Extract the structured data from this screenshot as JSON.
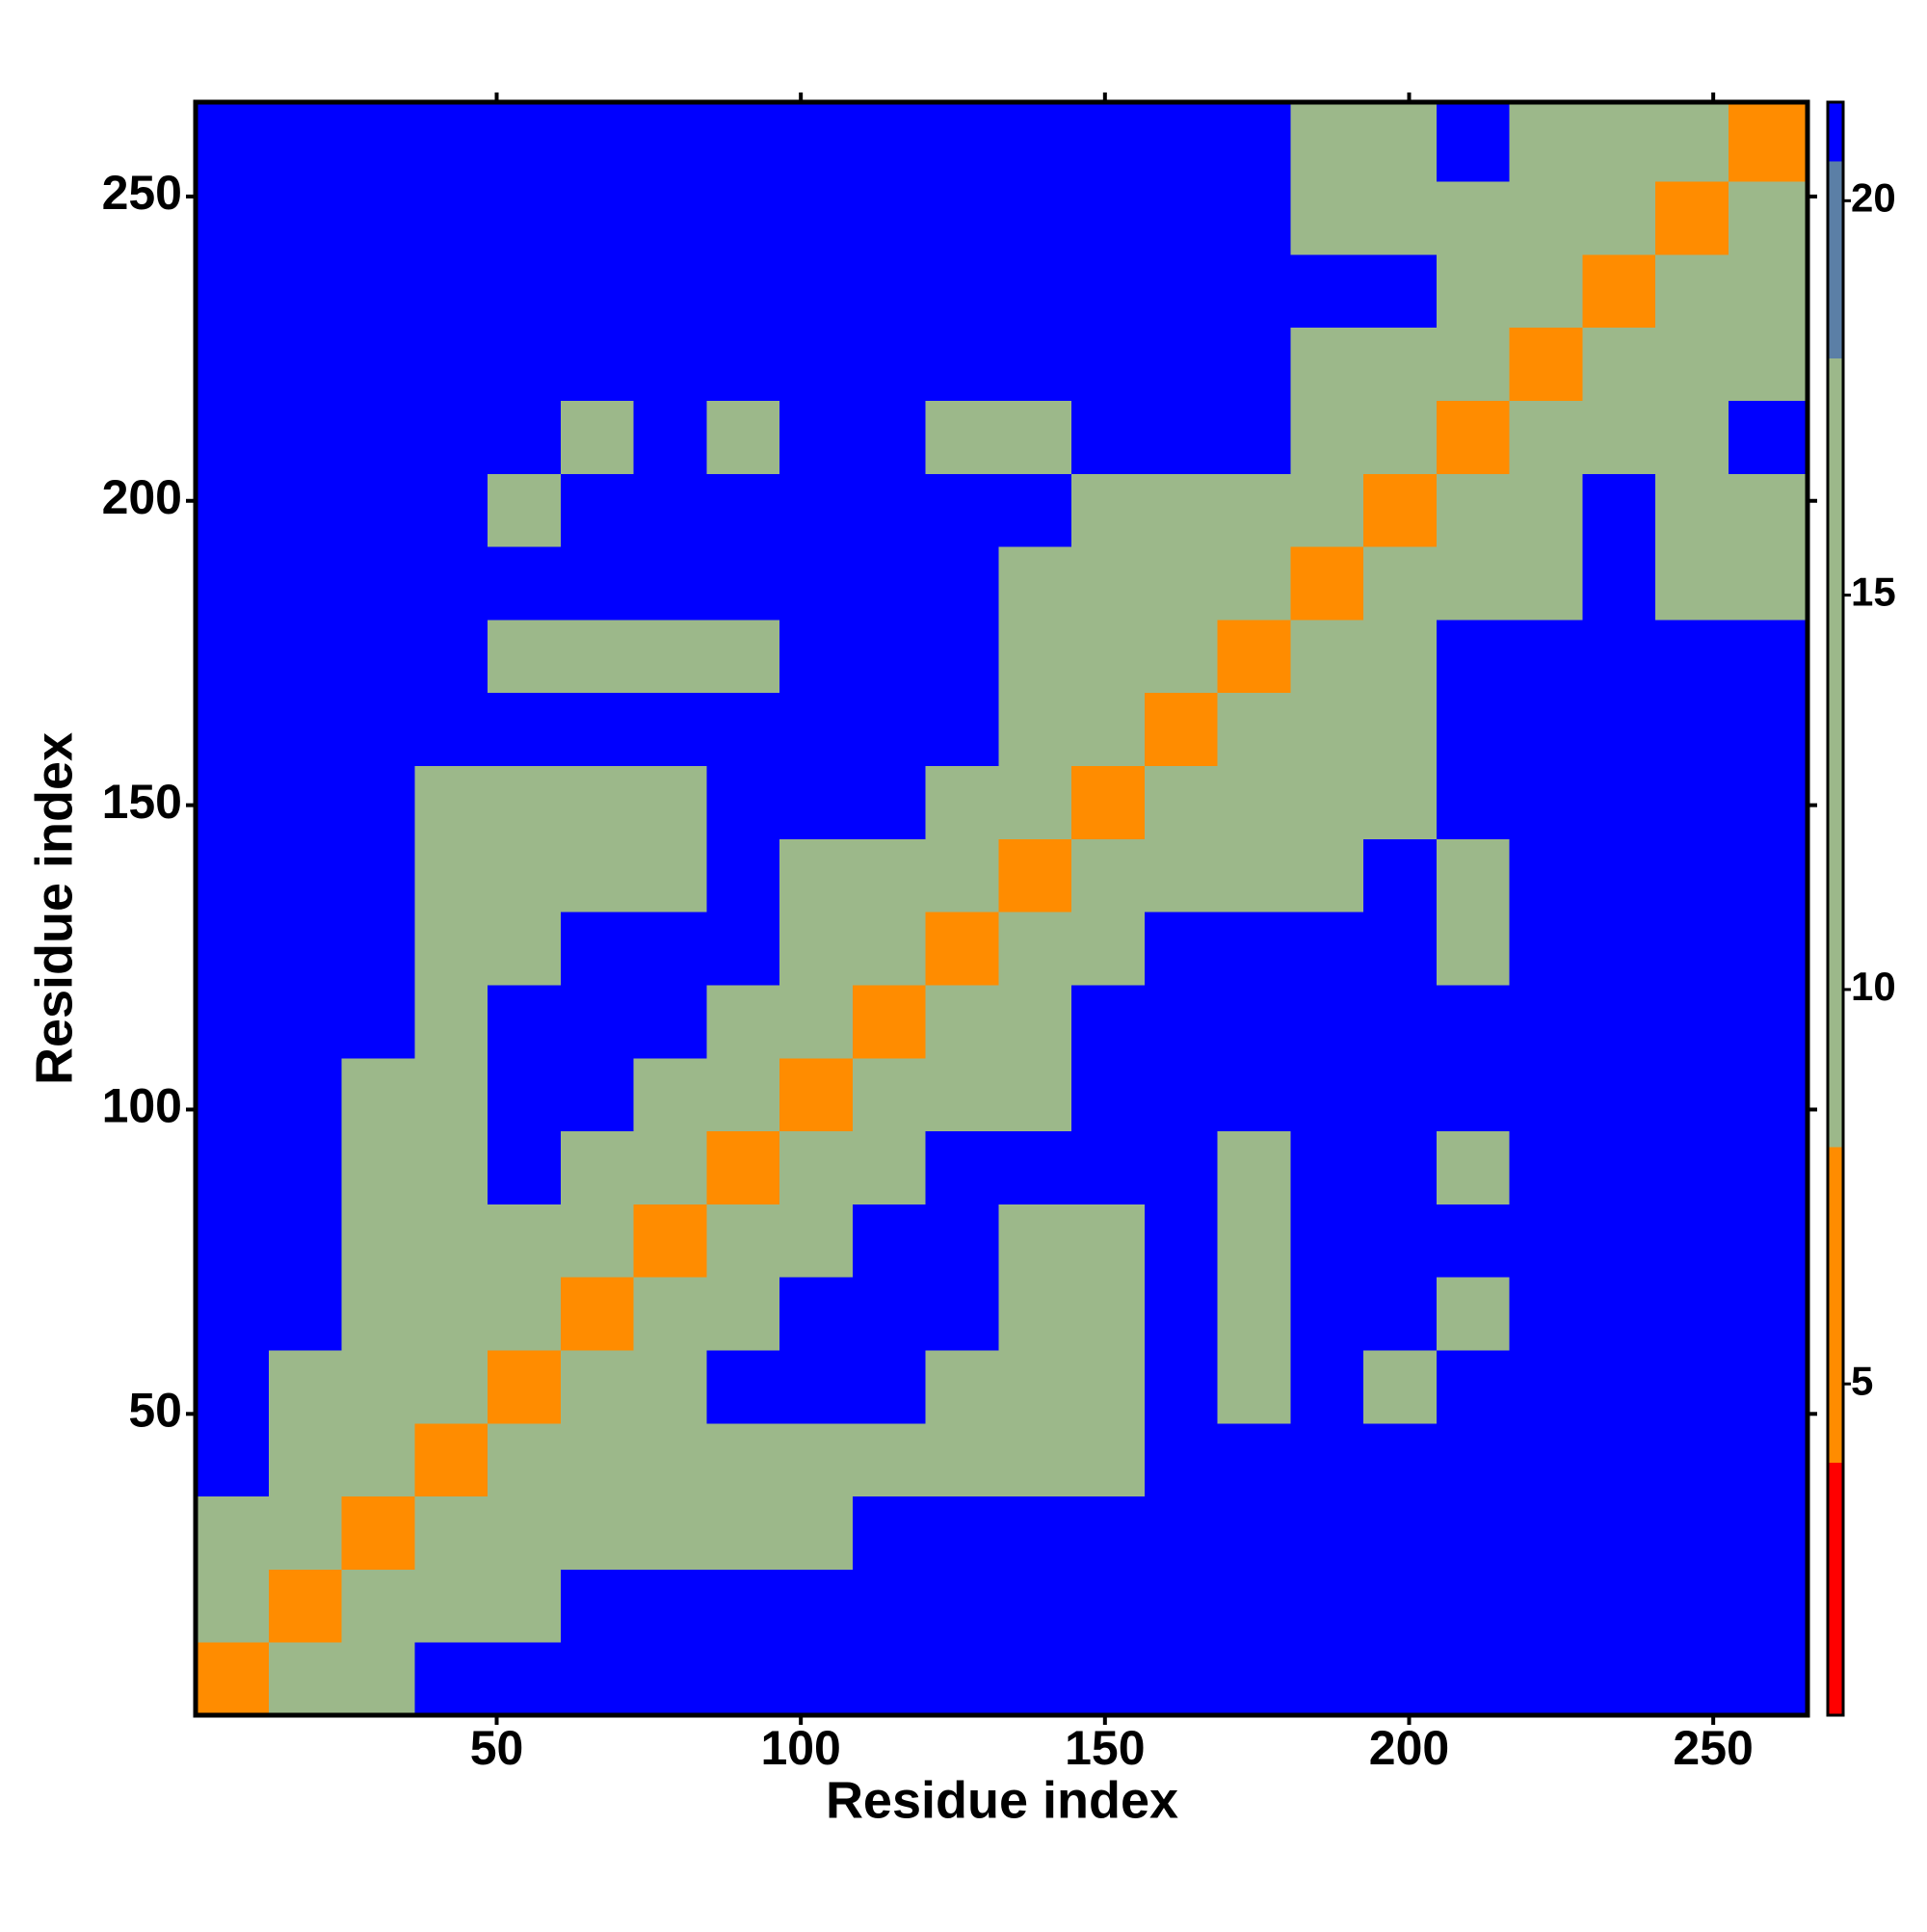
{
  "chart_data": {
    "type": "heatmap",
    "x_label": "Residue index",
    "y_label": "Residue index",
    "xbins": [
      0.5,
      12.5,
      24.5,
      36.5,
      48.5,
      60.5,
      72.5,
      84.5,
      96.5,
      108.5,
      120.5,
      132.5,
      144.5,
      156.5,
      168.5,
      180.5,
      192.5,
      204.5,
      216.5,
      228.5,
      240.5,
      252.5,
      265.5
    ],
    "ybins": [
      0.5,
      12.5,
      24.5,
      36.5,
      48.5,
      60.5,
      72.5,
      84.5,
      96.5,
      108.5,
      120.5,
      132.5,
      144.5,
      156.5,
      168.5,
      180.5,
      192.5,
      204.5,
      216.5,
      228.5,
      240.5,
      252.5,
      265.5
    ],
    "z": [
      [
        7,
        13,
        17,
        21,
        21,
        21,
        21,
        21,
        21,
        21,
        21,
        21,
        21,
        21,
        21,
        21,
        21,
        21,
        21,
        21,
        21,
        21
      ],
      [
        13,
        7,
        13,
        16,
        16,
        21,
        21,
        21,
        21,
        21,
        21,
        21,
        21,
        21,
        21,
        21,
        21,
        21,
        21,
        21,
        21,
        21
      ],
      [
        17,
        13,
        7,
        13,
        15,
        14,
        14,
        15,
        15,
        21,
        21,
        21,
        21,
        21,
        21,
        21,
        21,
        21,
        21,
        21,
        21,
        21
      ],
      [
        21,
        16,
        13,
        7,
        13,
        17,
        14,
        14,
        14,
        16,
        16,
        15,
        15,
        21,
        21,
        21,
        21,
        21,
        21,
        21,
        21,
        21
      ],
      [
        21,
        16,
        15,
        13,
        7,
        13,
        17,
        21,
        21,
        21,
        15,
        14,
        16,
        21,
        15,
        21,
        18,
        21,
        21,
        21,
        21,
        21
      ],
      [
        21,
        21,
        14,
        17,
        13,
        7,
        13,
        17,
        21,
        21,
        21,
        15,
        14,
        21,
        16,
        21,
        21,
        17,
        21,
        21,
        21,
        21
      ],
      [
        21,
        21,
        14,
        14,
        17,
        13,
        7,
        13,
        17,
        21,
        21,
        16,
        14,
        21,
        15,
        21,
        21,
        21,
        21,
        21,
        21,
        21
      ],
      [
        21,
        21,
        15,
        14,
        21,
        17,
        13,
        7,
        13,
        17,
        21,
        21,
        21,
        21,
        16,
        21,
        21,
        18,
        21,
        21,
        21,
        21
      ],
      [
        21,
        21,
        15,
        14,
        21,
        21,
        17,
        13,
        7,
        13,
        14,
        14,
        21,
        21,
        21,
        21,
        21,
        21,
        21,
        21,
        21,
        21
      ],
      [
        21,
        21,
        21,
        16,
        21,
        21,
        21,
        17,
        13,
        7,
        13,
        13,
        21,
        21,
        21,
        21,
        21,
        21,
        21,
        21,
        21,
        21
      ],
      [
        21,
        21,
        21,
        16,
        15,
        21,
        21,
        21,
        14,
        13,
        7,
        13,
        17,
        21,
        21,
        21,
        21,
        16,
        21,
        21,
        21,
        21
      ],
      [
        21,
        21,
        21,
        15,
        14,
        15,
        16,
        21,
        14,
        13,
        13,
        7,
        13,
        17,
        14,
        16,
        21,
        16,
        21,
        21,
        21,
        21
      ],
      [
        21,
        21,
        21,
        15,
        16,
        14,
        14,
        21,
        21,
        21,
        17,
        13,
        7,
        13,
        13,
        15,
        16,
        21,
        21,
        21,
        21,
        21
      ],
      [
        21,
        21,
        21,
        21,
        21,
        21,
        21,
        21,
        21,
        21,
        21,
        17,
        13,
        7,
        13,
        14,
        14,
        21,
        21,
        21,
        21,
        21
      ],
      [
        21,
        21,
        21,
        21,
        15,
        16,
        15,
        16,
        21,
        21,
        21,
        14,
        13,
        13,
        7,
        13,
        13,
        21,
        21,
        21,
        21,
        21
      ],
      [
        21,
        21,
        21,
        21,
        21,
        21,
        21,
        21,
        21,
        21,
        21,
        16,
        15,
        14,
        13,
        7,
        13,
        17,
        15,
        21,
        14,
        14
      ],
      [
        21,
        21,
        21,
        21,
        18,
        21,
        21,
        21,
        21,
        21,
        21,
        21,
        16,
        14,
        13,
        13,
        7,
        13,
        14,
        21,
        14,
        14
      ],
      [
        21,
        21,
        21,
        21,
        21,
        17,
        21,
        18,
        21,
        21,
        16,
        16,
        21,
        21,
        21,
        17,
        13,
        7,
        13,
        14,
        15,
        21
      ],
      [
        21,
        21,
        21,
        21,
        21,
        21,
        21,
        21,
        21,
        21,
        21,
        21,
        21,
        21,
        21,
        15,
        14,
        13,
        7,
        13,
        17,
        16
      ],
      [
        21,
        21,
        21,
        21,
        21,
        21,
        21,
        21,
        21,
        21,
        21,
        21,
        21,
        21,
        21,
        21,
        21,
        14,
        13,
        7,
        13,
        17
      ],
      [
        21,
        21,
        21,
        21,
        21,
        21,
        21,
        21,
        21,
        21,
        21,
        21,
        21,
        21,
        21,
        14,
        14,
        15,
        17,
        13,
        7,
        13
      ],
      [
        21,
        21,
        21,
        21,
        21,
        21,
        21,
        21,
        21,
        21,
        21,
        21,
        21,
        21,
        21,
        14,
        14,
        21,
        16,
        17,
        13,
        7
      ]
    ],
    "xlim": [
      0.5,
      265.5
    ],
    "ylim": [
      0.5,
      265.5
    ],
    "xticks": [
      50,
      100,
      150,
      200,
      250
    ],
    "yticks": [
      50,
      100,
      150,
      200,
      250
    ],
    "clim": [
      0.8,
      21.25
    ],
    "cticks": [
      5,
      10,
      15,
      20
    ],
    "colorscale": [
      {
        "max": 4,
        "color": "#ff0000"
      },
      {
        "max": 8,
        "color": "#ff8c00"
      },
      {
        "max": 18,
        "color": "#9cb88a"
      },
      {
        "max": 20.5,
        "color": "#5b7fa6"
      },
      {
        "max": 21.25,
        "color": "#0000ff"
      }
    ]
  }
}
